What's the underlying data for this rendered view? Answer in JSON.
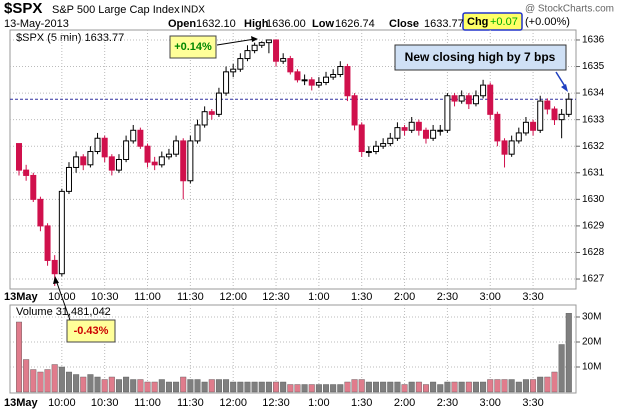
{
  "chart_data": {
    "type": "candlestick",
    "title": "$SPX",
    "subtitle": "S&P 500 Large Cap Index",
    "exchange": "INDX",
    "date": "13-May-2013",
    "watermark": "@ StockCharts.com",
    "quote": [
      [
        "Open",
        "1632.10"
      ],
      [
        "High",
        "1636.00"
      ],
      [
        "Low",
        "1626.74"
      ],
      [
        "Close",
        "1633.77"
      ]
    ],
    "change": [
      "Chg",
      "+0.07",
      "(+0.00%)"
    ],
    "legend": "$SPX (5 min) 1633.77",
    "volume_legend": "Volume 31,481,042",
    "annotations": [
      "+0.14%",
      "-0.43%",
      "New closing high by 7 bps"
    ],
    "reference_line": 1633.77,
    "categories": [
      "13May",
      null,
      null,
      null,
      null,
      null,
      "10:00",
      null,
      null,
      null,
      null,
      null,
      "10:30",
      null,
      null,
      null,
      null,
      null,
      "11:00",
      null,
      null,
      null,
      null,
      null,
      "11:30",
      null,
      null,
      null,
      null,
      null,
      "12:00",
      null,
      null,
      null,
      null,
      null,
      "12:30",
      null,
      null,
      null,
      null,
      null,
      "1:00",
      null,
      null,
      null,
      null,
      null,
      "1:30",
      null,
      null,
      null,
      null,
      null,
      "2:00",
      null,
      null,
      null,
      null,
      null,
      "2:30",
      null,
      null,
      null,
      null,
      null,
      "3:00",
      null,
      null,
      null,
      null,
      null,
      "3:30",
      null,
      null,
      null,
      null,
      null
    ],
    "open": [
      1632.1,
      1631.1,
      1630.9,
      1630.0,
      1629.0,
      1627.7,
      1627.2,
      1630.3,
      1631.2,
      1631.6,
      1631.3,
      1631.8,
      1632.3,
      1631.6,
      1631.1,
      1631.5,
      1632.2,
      1632.6,
      1632.0,
      1631.4,
      1631.3,
      1631.6,
      1631.7,
      1632.2,
      1630.7,
      1632.2,
      1632.8,
      1633.3,
      1633.2,
      1634.0,
      1634.8,
      1634.9,
      1635.3,
      1635.6,
      1635.8,
      1635.9,
      1636.0,
      1635.2,
      1635.3,
      1634.8,
      1634.5,
      1634.5,
      1634.3,
      1634.4,
      1634.6,
      1634.7,
      1635.0,
      1633.9,
      1632.8,
      1631.8,
      1631.8,
      1632.0,
      1632.1,
      1632.3,
      1632.7,
      1632.6,
      1632.9,
      1632.6,
      1632.3,
      1632.6,
      1632.6,
      1633.9,
      1633.7,
      1633.9,
      1633.6,
      1633.9,
      1634.3,
      1633.2,
      1632.2,
      1631.7,
      1632.2,
      1632.5,
      1632.9,
      1632.6,
      1633.7,
      1633.4,
      1633.0,
      1633.2
    ],
    "high": [
      1632.1,
      1631.3,
      1631.0,
      1630.1,
      1629.1,
      1627.9,
      1630.4,
      1631.4,
      1631.8,
      1631.7,
      1632.0,
      1632.5,
      1632.4,
      1631.7,
      1631.7,
      1632.4,
      1632.8,
      1632.7,
      1632.1,
      1631.6,
      1631.8,
      1631.9,
      1632.4,
      1632.3,
      1632.4,
      1633.0,
      1633.5,
      1633.4,
      1634.2,
      1635.0,
      1635.1,
      1635.5,
      1635.8,
      1635.9,
      1635.95,
      1636.0,
      1636.0,
      1635.5,
      1635.4,
      1634.9,
      1634.7,
      1634.6,
      1634.6,
      1634.8,
      1634.9,
      1635.2,
      1635.1,
      1634.0,
      1632.9,
      1632.0,
      1632.2,
      1632.3,
      1632.5,
      1632.9,
      1632.8,
      1633.1,
      1633.0,
      1632.7,
      1632.8,
      1632.8,
      1634.0,
      1634.0,
      1634.1,
      1634.0,
      1634.1,
      1634.5,
      1634.4,
      1633.3,
      1632.3,
      1632.4,
      1632.7,
      1633.1,
      1633.0,
      1633.9,
      1633.8,
      1633.5,
      1633.4,
      1634.0
    ],
    "low": [
      1630.9,
      1630.7,
      1629.9,
      1628.8,
      1627.5,
      1626.74,
      1627.1,
      1630.2,
      1631.0,
      1631.1,
      1631.2,
      1631.7,
      1631.4,
      1630.9,
      1631.0,
      1631.4,
      1632.1,
      1631.9,
      1631.2,
      1631.1,
      1631.2,
      1631.5,
      1631.6,
      1630.0,
      1630.6,
      1632.1,
      1632.7,
      1633.0,
      1633.1,
      1633.9,
      1634.6,
      1634.8,
      1635.2,
      1635.5,
      1635.7,
      1635.5,
      1635.0,
      1635.1,
      1634.7,
      1634.4,
      1634.3,
      1634.1,
      1634.2,
      1634.3,
      1634.5,
      1634.6,
      1633.7,
      1632.6,
      1631.6,
      1631.6,
      1631.7,
      1631.9,
      1632.0,
      1632.2,
      1632.4,
      1632.5,
      1632.4,
      1632.1,
      1632.2,
      1632.4,
      1632.5,
      1633.5,
      1633.6,
      1633.4,
      1633.5,
      1633.8,
      1633.0,
      1632.0,
      1631.2,
      1631.6,
      1632.1,
      1632.4,
      1632.4,
      1632.5,
      1633.2,
      1632.8,
      1632.3,
      1633.1
    ],
    "close": [
      1631.1,
      1630.9,
      1630.0,
      1629.0,
      1627.7,
      1627.2,
      1630.3,
      1631.2,
      1631.6,
      1631.3,
      1631.8,
      1632.3,
      1631.6,
      1631.1,
      1631.5,
      1632.2,
      1632.6,
      1632.0,
      1631.4,
      1631.3,
      1631.6,
      1631.7,
      1632.2,
      1630.7,
      1632.2,
      1632.8,
      1633.3,
      1633.2,
      1634.0,
      1634.8,
      1634.9,
      1635.3,
      1635.6,
      1635.8,
      1635.9,
      1636.0,
      1635.2,
      1635.3,
      1634.8,
      1634.5,
      1634.5,
      1634.3,
      1634.4,
      1634.6,
      1634.7,
      1635.0,
      1633.9,
      1632.8,
      1631.8,
      1631.8,
      1632.0,
      1632.1,
      1632.3,
      1632.7,
      1632.6,
      1632.9,
      1632.6,
      1632.3,
      1632.6,
      1632.6,
      1633.9,
      1633.7,
      1633.9,
      1633.6,
      1633.9,
      1634.3,
      1633.2,
      1632.2,
      1631.7,
      1632.2,
      1632.5,
      1632.9,
      1632.6,
      1633.7,
      1633.4,
      1633.0,
      1633.2,
      1633.77
    ],
    "volume": [
      28,
      13,
      9,
      8,
      9,
      11,
      10,
      8,
      7,
      6,
      7,
      6,
      5,
      6,
      5,
      6,
      5,
      5,
      4,
      4,
      5,
      4,
      4,
      6,
      5,
      5,
      4,
      5,
      5,
      5,
      4,
      4,
      4,
      4,
      4,
      4,
      4,
      4,
      3,
      3,
      3,
      3,
      3,
      3,
      3,
      3,
      4,
      5,
      5,
      4,
      4,
      4,
      4,
      4,
      3,
      4,
      4,
      3,
      4,
      3,
      4,
      4,
      4,
      4,
      4,
      4,
      5,
      5,
      5,
      5,
      4,
      5,
      5,
      6,
      6,
      8,
      19,
      31.48
    ],
    "up_color": "#000000",
    "down_color": "#d0104c",
    "volume_up_color": "#7f7f7f",
    "volume_down_color": "#e07c8c",
    "ylim": [
      1626.7,
      1636.3
    ],
    "yticks": [
      1627,
      1628,
      1629,
      1630,
      1631,
      1632,
      1633,
      1634,
      1635,
      1636
    ],
    "volume_ylim": [
      0,
      34
    ],
    "volume_yticks": [
      {
        "value": 10,
        "label": "10M"
      },
      {
        "value": 20,
        "label": "20M"
      },
      {
        "value": 30,
        "label": "30M"
      }
    ],
    "grid": true
  }
}
